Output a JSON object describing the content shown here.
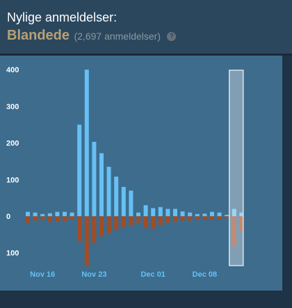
{
  "header": {
    "title": "Nylige anmeldelser:",
    "rating": "Blandede",
    "count": "(2,697 anmeldelser)",
    "help_glyph": "?"
  },
  "colors": {
    "positive": "#66c0f4",
    "negative": "#a34c25",
    "rating": "#b9a074",
    "chart_bg": "#3d6c8d"
  },
  "chart_data": {
    "type": "bar",
    "ylim": [
      -140,
      410
    ],
    "yticks": [
      {
        "value": 400,
        "label": "400"
      },
      {
        "value": 300,
        "label": "300"
      },
      {
        "value": 200,
        "label": "200"
      },
      {
        "value": 100,
        "label": "100"
      },
      {
        "value": 0,
        "label": "0"
      },
      {
        "value": -100,
        "label": "100"
      }
    ],
    "xticks": [
      {
        "index": 2,
        "label": "Nov 16"
      },
      {
        "index": 9,
        "label": "Nov 23"
      },
      {
        "index": 17,
        "label": "Dec 01"
      },
      {
        "index": 24,
        "label": "Dec 08"
      }
    ],
    "highlight_index": 28,
    "series": [
      {
        "values": [
          12,
          10,
          6,
          8,
          12,
          12,
          10,
          250,
          400,
          203,
          172,
          135,
          108,
          80,
          70,
          10,
          30,
          22,
          25,
          20,
          20,
          13,
          10,
          6,
          7,
          12,
          10,
          4,
          20,
          10
        ]
      },
      {
        "values": [
          -18,
          -12,
          -10,
          -16,
          -14,
          -14,
          -10,
          -68,
          -135,
          -72,
          -55,
          -48,
          -38,
          -30,
          -25,
          -18,
          -32,
          -34,
          -24,
          -18,
          -15,
          -12,
          -12,
          -8,
          -10,
          -10,
          -8,
          -5,
          -82,
          -40
        ]
      }
    ]
  }
}
